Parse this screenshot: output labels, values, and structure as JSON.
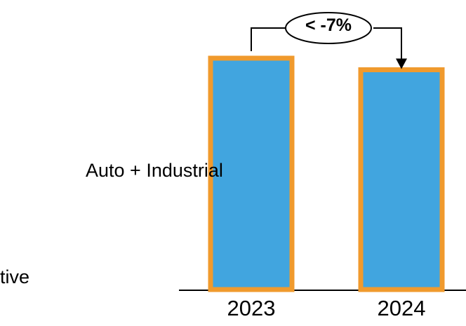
{
  "chart_data": {
    "type": "bar",
    "categories": [
      "2023",
      "2024"
    ],
    "series": [
      {
        "name": "Auto + Industrial",
        "values": [
          100,
          95
        ]
      }
    ],
    "ylim": [
      0,
      100
    ],
    "annotation": "< -7%",
    "left_text_fragment": "tive",
    "colors": {
      "bar_fill": "#41A5DF",
      "bar_border": "#F09A2D",
      "axis": "#000000",
      "text": "#000000"
    }
  }
}
